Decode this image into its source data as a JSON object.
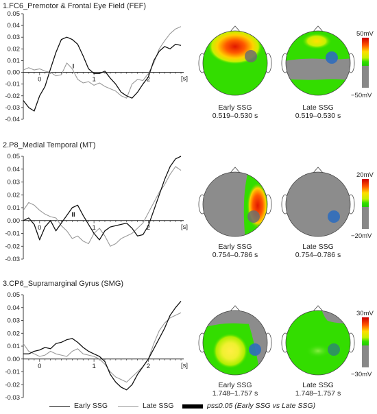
{
  "chart_data": [
    {
      "type": "line",
      "title": "1.FC6_Premotor & Frontal Eye Field (FEF)",
      "x_unit": "[s]",
      "xlim": [
        -0.3,
        2.65
      ],
      "xticks": [
        "0",
        "1",
        "2"
      ],
      "ylim": [
        -0.04,
        0.05
      ],
      "yticks": [
        "0.05",
        "0.04",
        "0.03",
        "0.02",
        "0.01",
        "0.00",
        "-0.01",
        "-0.02",
        "-0.03",
        "-0.04"
      ],
      "yticks_values": [
        0.05,
        0.04,
        0.03,
        0.02,
        0.01,
        0.0,
        -0.01,
        -0.02,
        -0.03,
        -0.04
      ],
      "series": [
        {
          "name": "Early SSG",
          "color": "#111111",
          "x": [
            -0.3,
            -0.2,
            -0.1,
            0.0,
            0.1,
            0.2,
            0.3,
            0.4,
            0.5,
            0.6,
            0.7,
            0.8,
            0.9,
            1.0,
            1.1,
            1.2,
            1.3,
            1.4,
            1.5,
            1.6,
            1.7,
            1.8,
            1.9,
            2.0,
            2.1,
            2.2,
            2.3,
            2.4,
            2.5,
            2.6
          ],
          "y": [
            -0.024,
            -0.03,
            -0.033,
            -0.02,
            -0.012,
            0.003,
            0.017,
            0.028,
            0.03,
            0.028,
            0.024,
            0.014,
            0.003,
            -0.001,
            -0.001,
            0.001,
            -0.005,
            -0.01,
            -0.017,
            -0.02,
            -0.022,
            -0.017,
            -0.01,
            -0.004,
            0.01,
            0.018,
            0.022,
            0.02,
            0.024,
            0.023
          ]
        },
        {
          "name": "Late SSG",
          "color": "#999999",
          "x": [
            -0.3,
            -0.2,
            -0.1,
            0.0,
            0.1,
            0.2,
            0.3,
            0.4,
            0.5,
            0.6,
            0.7,
            0.8,
            0.9,
            1.0,
            1.1,
            1.2,
            1.3,
            1.4,
            1.5,
            1.6,
            1.7,
            1.8,
            1.9,
            2.0,
            2.1,
            2.2,
            2.3,
            2.4,
            2.5,
            2.6
          ],
          "y": [
            0.002,
            0.004,
            0.002,
            0.003,
            0.001,
            0.0,
            -0.003,
            -0.002,
            0.008,
            0.003,
            -0.006,
            -0.009,
            -0.008,
            -0.011,
            -0.009,
            -0.012,
            -0.014,
            -0.016,
            -0.02,
            -0.022,
            -0.01,
            -0.006,
            -0.007,
            -0.001,
            0.008,
            0.02,
            0.027,
            0.033,
            0.037,
            0.039
          ]
        }
      ],
      "annotation": "I",
      "topomaps": [
        {
          "label": "Early SSG",
          "time": "0.519–0.530 s"
        },
        {
          "label": "Late SSG",
          "time": "0.519–0.530 s"
        }
      ],
      "colorbar": {
        "max": "50mV",
        "min": "−50mV"
      }
    },
    {
      "type": "line",
      "title": "2.P8_Medial Temporal (MT)",
      "x_unit": "[s]",
      "xlim": [
        -0.3,
        2.65
      ],
      "xticks": [
        "0",
        "1",
        "2"
      ],
      "ylim": [
        -0.03,
        0.05
      ],
      "yticks": [
        "0.05",
        "0.04",
        "0.03",
        "0.02",
        "0.01",
        "0.00",
        "-0.01",
        "-0.02",
        "-0.03"
      ],
      "yticks_values": [
        0.05,
        0.04,
        0.03,
        0.02,
        0.01,
        0.0,
        -0.01,
        -0.02,
        -0.03
      ],
      "series": [
        {
          "name": "Early SSG",
          "color": "#111111",
          "x": [
            -0.3,
            -0.2,
            -0.1,
            0.0,
            0.1,
            0.2,
            0.3,
            0.4,
            0.5,
            0.6,
            0.7,
            0.8,
            0.9,
            1.0,
            1.1,
            1.2,
            1.3,
            1.4,
            1.5,
            1.6,
            1.7,
            1.8,
            1.9,
            2.0,
            2.1,
            2.2,
            2.3,
            2.4,
            2.5,
            2.6
          ],
          "y": [
            0.0,
            0.002,
            -0.003,
            -0.015,
            -0.005,
            0.0,
            -0.008,
            -0.002,
            0.004,
            0.01,
            0.012,
            0.004,
            -0.003,
            -0.01,
            -0.015,
            -0.008,
            -0.005,
            -0.004,
            -0.003,
            -0.002,
            -0.006,
            -0.012,
            -0.011,
            -0.004,
            0.008,
            0.02,
            0.032,
            0.042,
            0.048,
            0.05
          ]
        },
        {
          "name": "Late SSG",
          "color": "#999999",
          "x": [
            -0.3,
            -0.2,
            -0.1,
            0.0,
            0.1,
            0.2,
            0.3,
            0.4,
            0.5,
            0.6,
            0.7,
            0.8,
            0.9,
            1.0,
            1.1,
            1.2,
            1.3,
            1.4,
            1.5,
            1.6,
            1.7,
            1.8,
            1.9,
            2.0,
            2.1,
            2.2,
            2.3,
            2.4,
            2.5,
            2.6
          ],
          "y": [
            0.008,
            0.014,
            0.012,
            0.008,
            0.005,
            0.003,
            0.002,
            -0.004,
            -0.008,
            -0.014,
            -0.012,
            -0.016,
            -0.018,
            -0.01,
            -0.006,
            -0.012,
            -0.02,
            -0.018,
            -0.014,
            -0.012,
            -0.01,
            -0.006,
            -0.002,
            0.006,
            0.014,
            0.022,
            0.028,
            0.036,
            0.042,
            0.039
          ]
        }
      ],
      "annotation": "II",
      "topomaps": [
        {
          "label": "Early SSG",
          "time": "0.754–0.786 s"
        },
        {
          "label": "Late SSG",
          "time": "0.754–0.786 s"
        }
      ],
      "colorbar": {
        "max": "20mV",
        "min": "−20mV"
      }
    },
    {
      "type": "line",
      "title": "3.CP6_Supramarginal Gyrus (SMG)",
      "x_unit": "[s]",
      "xlim": [
        -0.3,
        2.65
      ],
      "xticks": [
        "0",
        "1",
        "2"
      ],
      "ylim": [
        -0.03,
        0.05
      ],
      "yticks": [
        "0.05",
        "0.04",
        "0.03",
        "0.02",
        "0.01",
        "0.00",
        "-0.01",
        "-0.02",
        "-0.03"
      ],
      "yticks_values": [
        0.05,
        0.04,
        0.03,
        0.02,
        0.01,
        0.0,
        -0.01,
        -0.02,
        -0.03
      ],
      "series": [
        {
          "name": "Early SSG",
          "color": "#111111",
          "x": [
            -0.3,
            -0.2,
            -0.1,
            0.0,
            0.1,
            0.2,
            0.3,
            0.4,
            0.5,
            0.6,
            0.7,
            0.8,
            0.9,
            1.0,
            1.1,
            1.2,
            1.3,
            1.4,
            1.5,
            1.6,
            1.7,
            1.8,
            1.9,
            2.0,
            2.1,
            2.2,
            2.3,
            2.4,
            2.5,
            2.6
          ],
          "y": [
            0.004,
            0.004,
            0.006,
            0.007,
            0.009,
            0.008,
            0.012,
            0.013,
            0.015,
            0.016,
            0.013,
            0.009,
            0.006,
            0.004,
            0.002,
            -0.002,
            -0.012,
            -0.018,
            -0.022,
            -0.024,
            -0.02,
            -0.012,
            -0.006,
            0.0,
            0.008,
            0.016,
            0.024,
            0.034,
            0.04,
            0.045
          ]
        },
        {
          "name": "Late SSG",
          "color": "#999999",
          "x": [
            -0.3,
            -0.2,
            -0.1,
            0.0,
            0.1,
            0.2,
            0.3,
            0.4,
            0.5,
            0.6,
            0.7,
            0.8,
            0.9,
            1.0,
            1.1,
            1.2,
            1.3,
            1.4,
            1.5,
            1.6,
            1.7,
            1.8,
            1.9,
            2.0,
            2.1,
            2.2,
            2.3,
            2.4,
            2.5,
            2.6
          ],
          "y": [
            0.012,
            0.006,
            0.004,
            0.002,
            0.003,
            0.006,
            0.004,
            0.003,
            0.002,
            0.006,
            0.008,
            0.004,
            0.003,
            0.002,
            0.0,
            -0.004,
            -0.01,
            -0.014,
            -0.016,
            -0.018,
            -0.014,
            -0.01,
            -0.006,
            0.0,
            0.012,
            0.022,
            0.028,
            0.032,
            0.034,
            0.036
          ]
        }
      ],
      "annotation": "",
      "topomaps": [
        {
          "label": "Early SSG",
          "time": "1.748–1.757 s"
        },
        {
          "label": "Late SSG",
          "time": "1.748–1.757 s"
        }
      ],
      "colorbar": {
        "max": "30mV",
        "min": "−30mV"
      }
    }
  ],
  "legend": [
    {
      "label": "Early SSG",
      "color": "#111111"
    },
    {
      "label": "Late SSG",
      "color": "#999999"
    },
    {
      "label": "ps≤0.05 (Early SSG vs Late SSG)",
      "color": "#000000"
    }
  ]
}
